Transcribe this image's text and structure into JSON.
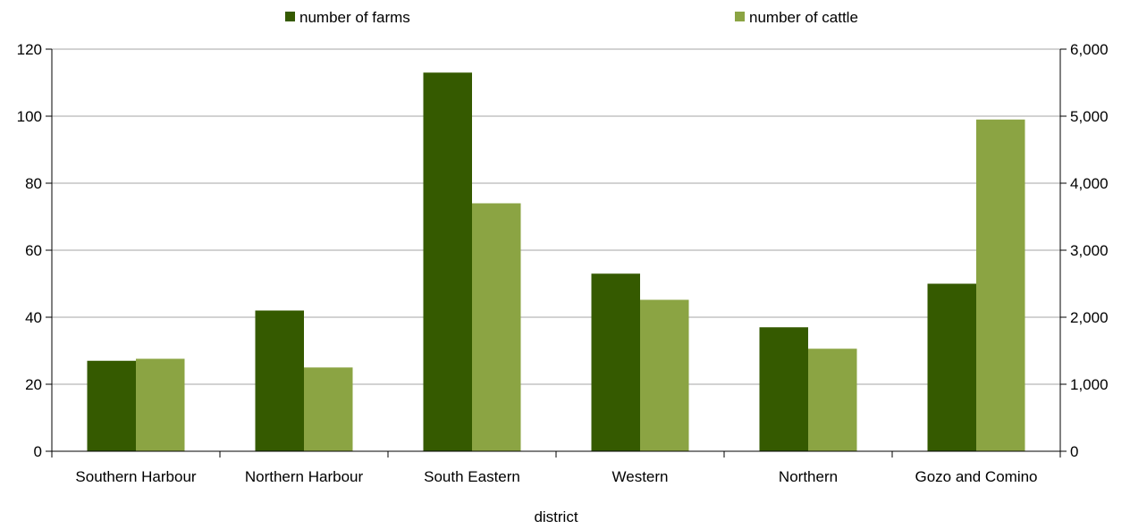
{
  "chart_data": {
    "type": "bar",
    "title": "",
    "xlabel": "district",
    "ylabel_left": "",
    "ylabel_right": "",
    "categories": [
      "Southern Harbour",
      "Northern Harbour",
      "South Eastern",
      "Western",
      "Northern",
      "Gozo and Comino"
    ],
    "series": [
      {
        "name": "number of farms",
        "axis": "left",
        "color": "#355a00",
        "values": [
          27,
          42,
          113,
          53,
          37,
          50
        ]
      },
      {
        "name": "number of cattle",
        "axis": "right",
        "color": "#8ba443",
        "values": [
          1380,
          1250,
          3700,
          2260,
          1530,
          4950
        ]
      }
    ],
    "y_left": {
      "min": 0,
      "max": 120,
      "ticks": [
        0,
        20,
        40,
        60,
        80,
        100,
        120
      ],
      "tick_labels": [
        "0",
        "20",
        "40",
        "60",
        "80",
        "100",
        "120"
      ]
    },
    "y_right": {
      "min": 0,
      "max": 6000,
      "ticks": [
        0,
        1000,
        2000,
        3000,
        4000,
        5000,
        6000
      ],
      "tick_labels": [
        "0",
        "1,000",
        "2,000",
        "3,000",
        "4,000",
        "5,000",
        "6,000"
      ]
    },
    "grid": true,
    "legend_position": "top"
  }
}
